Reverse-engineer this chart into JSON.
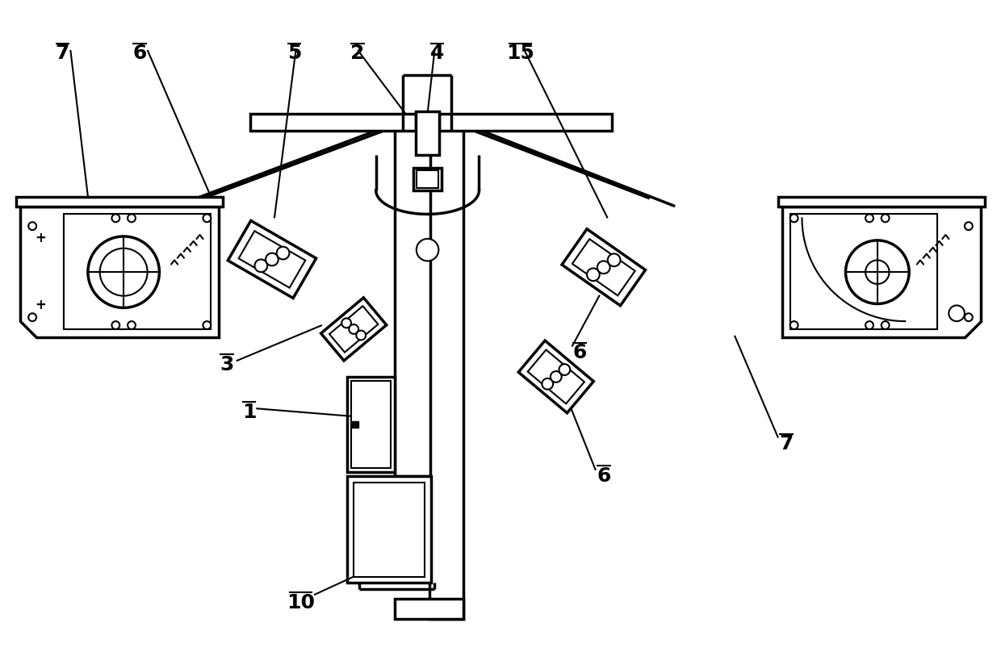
{
  "bg_color": "#ffffff",
  "lc": "#000000",
  "lw": 1.5,
  "blw": 2.5,
  "fig_width": 12.4,
  "fig_height": 8.08,
  "label_fontsize": 18,
  "label_fontweight": "bold"
}
